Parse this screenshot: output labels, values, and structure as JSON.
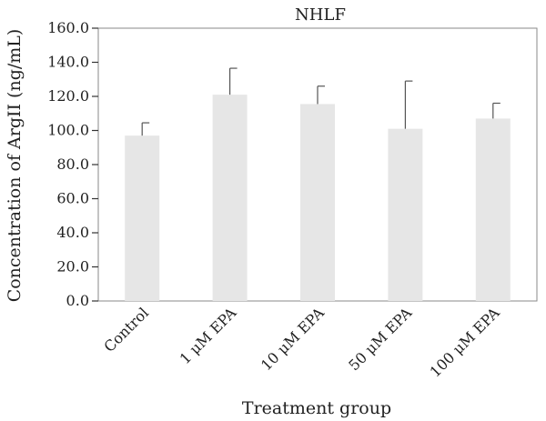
{
  "chart_data": {
    "type": "bar",
    "title": "NHLF",
    "xlabel": "Treatment group",
    "ylabel": "Concentration of ArgII (ng/mL)",
    "categories": [
      "Control",
      "1 μM EPA",
      "10 μM EPA",
      "50 μM EPA",
      "100 μM EPA"
    ],
    "values": [
      97.0,
      121.0,
      115.5,
      101.0,
      107.0
    ],
    "errors": [
      7.5,
      15.5,
      10.5,
      28.0,
      9.0
    ],
    "ylim": [
      0,
      160
    ],
    "yticks": [
      "0.0",
      "20.0",
      "40.0",
      "60.0",
      "80.0",
      "100.0",
      "120.0",
      "140.0",
      "160.0"
    ],
    "bar_color": "#e6e6e6",
    "error_color": "#555555",
    "grid": false
  }
}
